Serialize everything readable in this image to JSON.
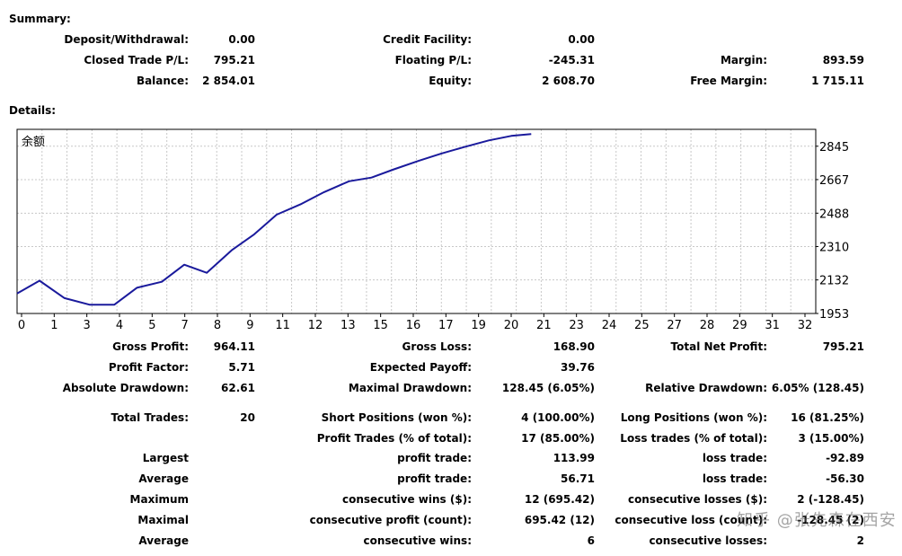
{
  "summary": {
    "heading": "Summary:",
    "rows": [
      [
        {
          "label": "Deposit/Withdrawal:",
          "value": "0.00"
        },
        {
          "label": "Credit Facility:",
          "value": "0.00"
        },
        {
          "label": "",
          "value": ""
        }
      ],
      [
        {
          "label": "Closed Trade P/L:",
          "value": "795.21"
        },
        {
          "label": "Floating P/L:",
          "value": "-245.31"
        },
        {
          "label": "Margin:",
          "value": "893.59"
        }
      ],
      [
        {
          "label": "Balance:",
          "value": "2 854.01"
        },
        {
          "label": "Equity:",
          "value": "2 608.70"
        },
        {
          "label": "Free Margin:",
          "value": "1 715.11"
        }
      ]
    ]
  },
  "details": {
    "heading": "Details:",
    "rows": [
      [
        {
          "label": "Gross Profit:",
          "value": "964.11"
        },
        {
          "label": "Gross Loss:",
          "value": "168.90"
        },
        {
          "label": "Total Net Profit:",
          "value": "795.21"
        }
      ],
      [
        {
          "label": "Profit Factor:",
          "value": "5.71"
        },
        {
          "label": "Expected Payoff:",
          "value": "39.76"
        },
        {
          "label": "",
          "value": ""
        }
      ],
      [
        {
          "label": "Absolute Drawdown:",
          "value": "62.61"
        },
        {
          "label": "Maximal Drawdown:",
          "value": "128.45 (6.05%)"
        },
        {
          "label": "Relative Drawdown:",
          "value": "6.05% (128.45)"
        }
      ],
      [
        {
          "label": "Total Trades:",
          "value": "20"
        },
        {
          "label": "Short Positions (won %):",
          "value": "4 (100.00%)"
        },
        {
          "label": "Long Positions (won %):",
          "value": "16 (81.25%)"
        }
      ],
      [
        {
          "label": "",
          "value": ""
        },
        {
          "label": "Profit Trades (% of total):",
          "value": "17 (85.00%)"
        },
        {
          "label": "Loss trades (% of total):",
          "value": "3 (15.00%)"
        }
      ],
      [
        {
          "label": "Largest",
          "value": ""
        },
        {
          "label": "profit trade:",
          "value": "113.99"
        },
        {
          "label": "loss trade:",
          "value": "-92.89"
        }
      ],
      [
        {
          "label": "Average",
          "value": ""
        },
        {
          "label": "profit trade:",
          "value": "56.71"
        },
        {
          "label": "loss trade:",
          "value": "-56.30"
        }
      ],
      [
        {
          "label": "Maximum",
          "value": ""
        },
        {
          "label": "consecutive wins ($):",
          "value": "12 (695.42)"
        },
        {
          "label": "consecutive losses ($):",
          "value": "2 (-128.45)"
        }
      ],
      [
        {
          "label": "Maximal",
          "value": ""
        },
        {
          "label": "consecutive profit (count):",
          "value": "695.42 (12)"
        },
        {
          "label": "consecutive loss (count):",
          "value": "-128.45 (2)"
        }
      ],
      [
        {
          "label": "Average",
          "value": ""
        },
        {
          "label": "consecutive wins:",
          "value": "6"
        },
        {
          "label": "consecutive losses:",
          "value": "2"
        }
      ]
    ]
  },
  "watermark": "知乎 @张先森在西安",
  "chart_data": {
    "type": "line",
    "title": "余额",
    "x_ticks": [
      0,
      1,
      2,
      3,
      4,
      5,
      6,
      7,
      8,
      9,
      10,
      11,
      12,
      13,
      14,
      15,
      16,
      17,
      18,
      19,
      20,
      21,
      22,
      23,
      24,
      25,
      26,
      27,
      28,
      29,
      30,
      31,
      32
    ],
    "x_tick_labels": [
      "0",
      "1",
      "3",
      "4",
      "5",
      "7",
      "8",
      "9",
      "11",
      "12",
      "13",
      "15",
      "16",
      "17",
      "19",
      "20",
      "21",
      "23",
      "24",
      "25",
      "27",
      "28",
      "29",
      "31",
      "32"
    ],
    "y_ticks": [
      1953,
      2132,
      2310,
      2488,
      2667,
      2845
    ],
    "xlim": [
      0,
      32
    ],
    "ylim": [
      1953,
      2935
    ],
    "grid": true,
    "line_color": "#1a1a9c",
    "series": [
      {
        "x": [
          0,
          0.9,
          1.9,
          2.9,
          3.9,
          4.8,
          5.8,
          6.7,
          7.6,
          8.6,
          9.5,
          10.4,
          11.4,
          12.3,
          13.3,
          14.2,
          15.1,
          16.1,
          17.0,
          17.9,
          18.9,
          19.8,
          20.6
        ],
        "y": [
          2060,
          2128,
          2035,
          2000,
          2000,
          2090,
          2122,
          2213,
          2170,
          2290,
          2375,
          2480,
          2538,
          2600,
          2658,
          2678,
          2722,
          2768,
          2806,
          2840,
          2876,
          2900,
          2910
        ]
      }
    ]
  }
}
